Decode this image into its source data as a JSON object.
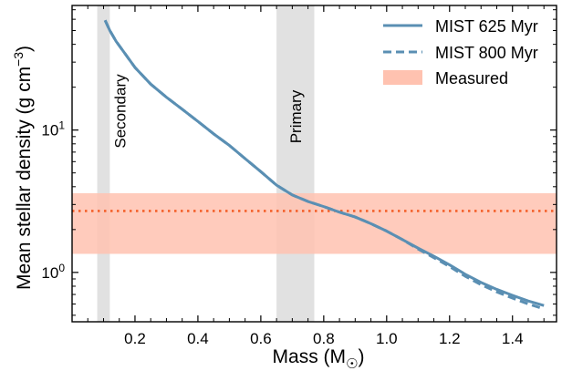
{
  "chart_data": {
    "type": "line",
    "xlabel": "Mass (M",
    "xlabel_sub": "☉",
    "xlabel_close": ")",
    "ylabel": "Mean stellar density (g cm",
    "ylabel_sup": "−3",
    "ylabel_close": ")",
    "xlim": [
      0.0,
      1.54
    ],
    "ylim": [
      0.45,
      75
    ],
    "yscale": "log",
    "xticks": [
      0.2,
      0.4,
      0.6,
      0.8,
      1.0,
      1.2,
      1.4
    ],
    "xtick_labels": [
      "0.2",
      "0.4",
      "0.6",
      "0.8",
      "1.0",
      "1.2",
      "1.4"
    ],
    "yticks_major": [
      {
        "value": 1,
        "base": "10",
        "exp": "0"
      },
      {
        "value": 10,
        "base": "10",
        "exp": "1"
      }
    ],
    "grid": false,
    "legend_position": "top-right",
    "colors": {
      "model": "#5a8fb3",
      "band": "#ffc2b0",
      "measured_line": "#f4602a",
      "shade": "#c8c8c8"
    },
    "series": [
      {
        "name": "MIST 625 Myr",
        "style": "solid",
        "x": [
          0.105,
          0.12,
          0.14,
          0.17,
          0.2,
          0.25,
          0.3,
          0.35,
          0.4,
          0.45,
          0.5,
          0.55,
          0.6,
          0.65,
          0.7,
          0.75,
          0.8,
          0.85,
          0.9,
          0.95,
          1.0,
          1.05,
          1.1,
          1.15,
          1.2,
          1.25,
          1.3,
          1.35,
          1.4,
          1.45,
          1.5
        ],
        "y": [
          59,
          50,
          42,
          34,
          27.5,
          21,
          17,
          14,
          11.5,
          9.4,
          7.8,
          6.3,
          5.1,
          4.1,
          3.5,
          3.15,
          2.9,
          2.65,
          2.45,
          2.2,
          1.95,
          1.7,
          1.48,
          1.3,
          1.13,
          0.97,
          0.85,
          0.76,
          0.69,
          0.63,
          0.585
        ]
      },
      {
        "name": "MIST 800 Myr",
        "style": "dashed",
        "x": [
          0.105,
          0.12,
          0.14,
          0.17,
          0.2,
          0.25,
          0.3,
          0.35,
          0.4,
          0.45,
          0.5,
          0.55,
          0.6,
          0.65,
          0.7,
          0.75,
          0.8,
          0.85,
          0.9,
          0.95,
          1.0,
          1.05,
          1.1,
          1.15,
          1.2,
          1.25,
          1.3,
          1.35,
          1.4,
          1.45,
          1.5
        ],
        "y": [
          59,
          50,
          42,
          34,
          27.5,
          21,
          17,
          14,
          11.5,
          9.4,
          7.8,
          6.3,
          5.1,
          4.1,
          3.5,
          3.15,
          2.9,
          2.65,
          2.45,
          2.2,
          1.95,
          1.7,
          1.46,
          1.27,
          1.1,
          0.94,
          0.82,
          0.73,
          0.66,
          0.6,
          0.555
        ]
      }
    ],
    "measured": {
      "name": "Measured",
      "value": 2.7,
      "low": 1.35,
      "high": 3.6
    },
    "regions": [
      {
        "label": "Secondary",
        "x_min": 0.08,
        "x_max": 0.12
      },
      {
        "label": "Primary",
        "x_min": 0.65,
        "x_max": 0.77
      }
    ]
  }
}
